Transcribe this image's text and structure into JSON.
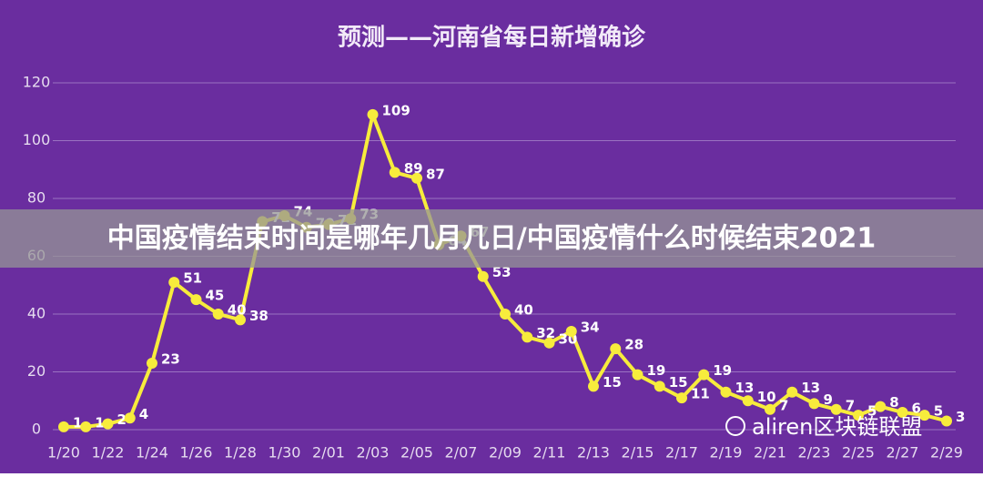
{
  "chart_data": {
    "type": "line",
    "title": "预测——河南省每日新增确诊",
    "categories": [
      "1/20",
      null,
      "1/22",
      null,
      "1/24",
      null,
      "1/26",
      null,
      "1/28",
      null,
      "1/30",
      null,
      "2/01",
      null,
      "2/03",
      null,
      "2/05",
      null,
      "2/07",
      null,
      "2/09",
      null,
      "2/11",
      null,
      "2/13",
      null,
      "2/15",
      null,
      "2/17",
      null,
      "2/19",
      null,
      "2/21",
      null,
      "2/23",
      null,
      "2/25",
      null,
      "2/27",
      null,
      "2/29"
    ],
    "series": [
      {
        "color": "#f7ec3c",
        "values": [
          1,
          1,
          2,
          4,
          23,
          51,
          45,
          40,
          38,
          72,
          74,
          70,
          71,
          73,
          109,
          89,
          87,
          64,
          67,
          53,
          40,
          32,
          30,
          34,
          15,
          28,
          19,
          15,
          11,
          19,
          13,
          10,
          7,
          13,
          9,
          7,
          5,
          8,
          6,
          5,
          3
        ]
      }
    ],
    "ylim": [
      0,
      120
    ],
    "yticks": [
      0,
      20,
      40,
      60,
      80,
      100,
      120
    ],
    "grid": true
  },
  "overlay": {
    "banner": "中国疫情结束时间是哪年几月几日/中国疫情什么时候结束2021",
    "watermark": "aliren区块链联盟"
  }
}
